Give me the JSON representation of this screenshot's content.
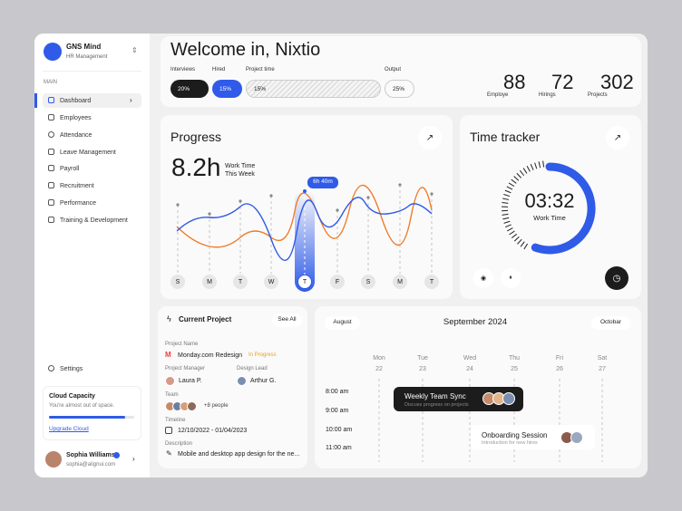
{
  "sidebar": {
    "brand": {
      "name": "GNS Mind",
      "subtitle": "HR Management"
    },
    "section": "MAIN",
    "nav": [
      "Dashboard",
      "Employees",
      "Attendance",
      "Leave Management",
      "Payroll",
      "Recruitment",
      "Performance",
      "Training & Development"
    ],
    "settings": "Settings",
    "capacity": {
      "title": "Cloud Capacity",
      "text": "You're almost out of space.",
      "link": "Upgrade Cloud"
    },
    "user": {
      "name": "Sophia Williams",
      "email": "sophia@alignui.com"
    }
  },
  "header": {
    "title": "Welcome in, Nixtio",
    "bars": [
      {
        "label": "Interviews",
        "value": "20%"
      },
      {
        "label": "Hired",
        "value": "15%"
      },
      {
        "label": "Project time",
        "value": "15%"
      },
      {
        "label": "Output",
        "value": "25%"
      }
    ],
    "stats": [
      {
        "value": 88,
        "label": "Employe"
      },
      {
        "value": 72,
        "label": "Hirings"
      },
      {
        "value": 302,
        "label": "Projects"
      }
    ]
  },
  "progress": {
    "title": "Progress",
    "value": "8.2h",
    "label": [
      "Work Time",
      "This Week"
    ],
    "tooltip": "6h 40m",
    "days": [
      "S",
      "M",
      "T",
      "W",
      "T",
      "F",
      "S",
      "M",
      "T"
    ]
  },
  "tracker": {
    "title": "Time tracker",
    "time": "03:32",
    "label": "Work Time"
  },
  "project": {
    "title": "Current Project",
    "see_all": "See All",
    "name_label": "Project Name",
    "name": "Monday.com Redesign",
    "status": "In Progress",
    "manager_label": "Project Manager",
    "manager": "Laura P.",
    "lead_label": "Design Lead",
    "lead": "Arthur G.",
    "team_label": "Team",
    "team": "+8 people",
    "timeline_label": "Timeline",
    "timeline": "12/10/2022 - 01/04/2023",
    "description_label": "Description",
    "description": "Mobile and desktop app design for the ne..."
  },
  "calendar": {
    "prev": "August",
    "month": "September 2024",
    "next": "Octobar",
    "days": [
      {
        "name": "Mon",
        "date": "22"
      },
      {
        "name": "Tue",
        "date": "23"
      },
      {
        "name": "Wed",
        "date": "24"
      },
      {
        "name": "Thu",
        "date": "25"
      },
      {
        "name": "Fri",
        "date": "26"
      },
      {
        "name": "Sat",
        "date": "27"
      }
    ],
    "times": [
      "8:00 am",
      "9:00 am",
      "10:00 am",
      "11:00 am"
    ],
    "events": [
      {
        "title": "Weekly Team Sync",
        "subtitle": "Discuss progress on projects"
      },
      {
        "title": "Onboarding Session",
        "subtitle": "Introduction for new hires"
      }
    ]
  }
}
